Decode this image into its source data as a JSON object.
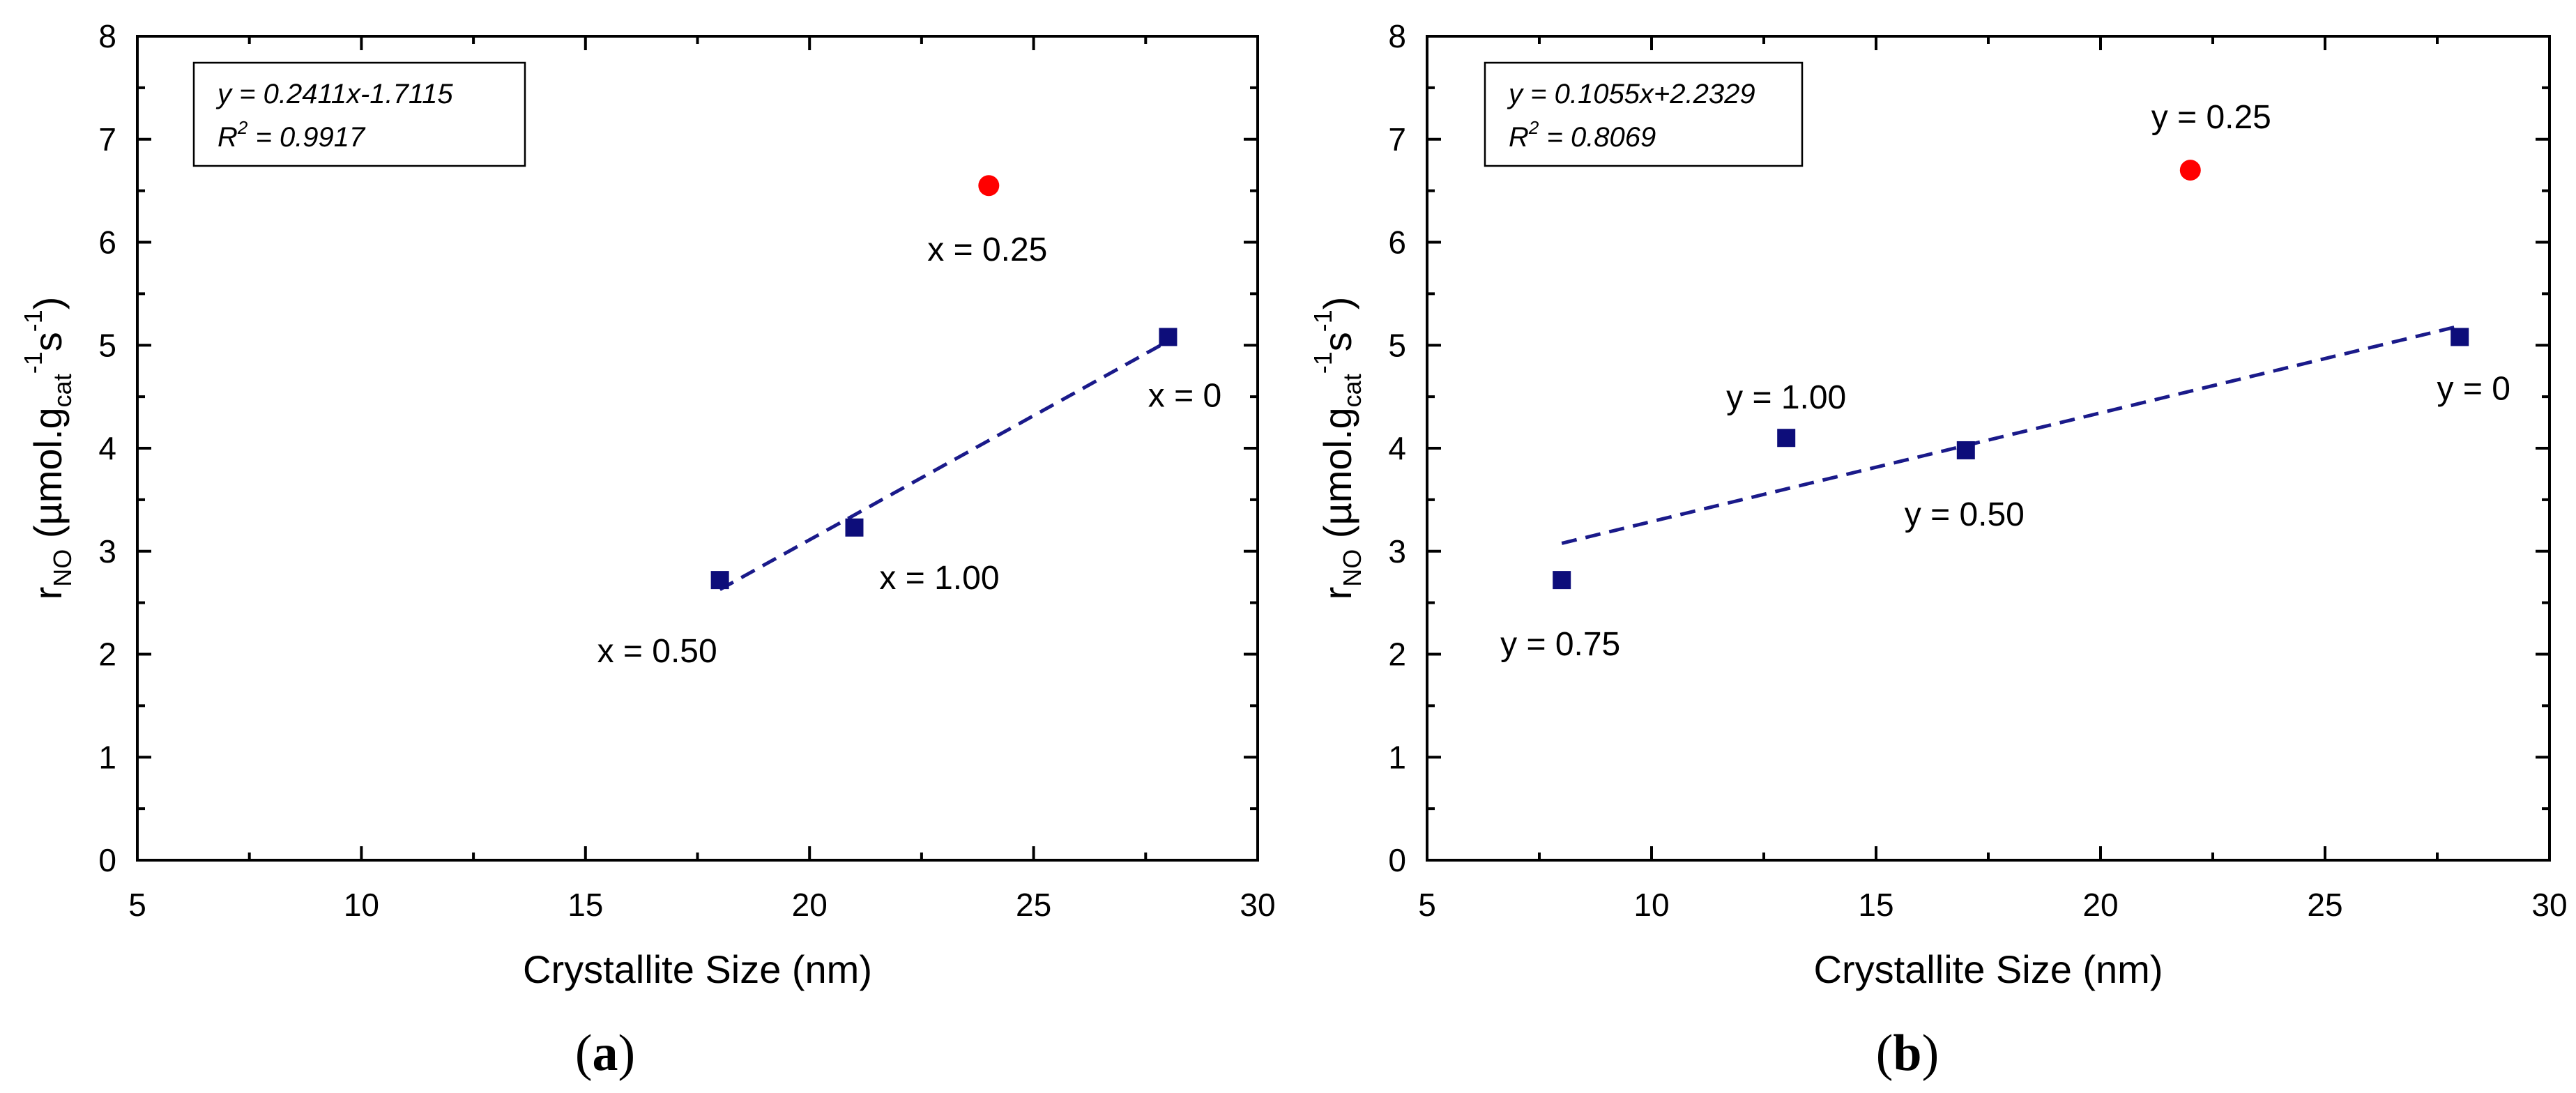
{
  "chart_data": [
    {
      "type": "scatter",
      "panel_label": "(a)",
      "panel_letter": "a",
      "xlabel": "Crystallite Size (nm)",
      "ylabel": {
        "base": "r",
        "base_sub": "NO",
        "unit_open": " (µmol.g",
        "unit_g_sub": "cat",
        "unit_g_sup": "-1",
        "unit_s": "s",
        "unit_s_sup": "-1",
        "unit_close": ")"
      },
      "xlim": [
        5,
        30
      ],
      "ylim": [
        0,
        8
      ],
      "xticks": [
        5,
        10,
        15,
        20,
        25,
        30
      ],
      "yticks": [
        0,
        1,
        2,
        3,
        4,
        5,
        6,
        7,
        8
      ],
      "grid": false,
      "equation": "y = 0.2411x-1.7115",
      "r2_label": "R",
      "r2_sup": "2",
      "r2_value": " = 0.9917",
      "fit": {
        "slope": 0.2411,
        "intercept": -1.7115,
        "x_range": [
          18,
          28
        ],
        "color": "#1a1a8a"
      },
      "series": [
        {
          "name": "squares",
          "marker": "square",
          "color": "#0d0d7a",
          "points": [
            {
              "x": 18,
              "y": 2.72,
              "label": "x = 0.50",
              "label_pos": "below-left"
            },
            {
              "x": 21,
              "y": 3.23,
              "label": "x = 1.00",
              "label_pos": "below-right"
            },
            {
              "x": 28,
              "y": 5.08,
              "label": "x = 0",
              "label_pos": "below-left-near"
            }
          ]
        },
        {
          "name": "outlier",
          "marker": "circle",
          "color": "#ff0000",
          "points": [
            {
              "x": 24,
              "y": 6.55,
              "label": "x = 0.25",
              "label_pos": "below"
            }
          ]
        }
      ]
    },
    {
      "type": "scatter",
      "panel_label": "(b)",
      "panel_letter": "b",
      "xlabel": "Crystallite Size (nm)",
      "ylabel": {
        "base": "r",
        "base_sub": "NO",
        "unit_open": " (µmol.g",
        "unit_g_sub": "cat",
        "unit_g_sup": "-1",
        "unit_s": "s",
        "unit_s_sup": "-1",
        "unit_close": ")"
      },
      "xlim": [
        5,
        30
      ],
      "ylim": [
        0,
        8
      ],
      "xticks": [
        5,
        10,
        15,
        20,
        25,
        30
      ],
      "yticks": [
        0,
        1,
        2,
        3,
        4,
        5,
        6,
        7,
        8
      ],
      "grid": false,
      "equation": "y = 0.1055x+2.2329",
      "r2_label": "R",
      "r2_sup": "2",
      "r2_value": " = 0.8069",
      "fit": {
        "slope": 0.1055,
        "intercept": 2.2329,
        "x_range": [
          8,
          28
        ],
        "color": "#1a1a8a"
      },
      "series": [
        {
          "name": "squares",
          "marker": "square",
          "color": "#0d0d7a",
          "points": [
            {
              "x": 8,
              "y": 2.72,
              "label": "y = 0.75",
              "label_pos": "below"
            },
            {
              "x": 13,
              "y": 4.1,
              "label": "y = 1.00",
              "label_pos": "above"
            },
            {
              "x": 17,
              "y": 3.98,
              "label": "y = 0.50",
              "label_pos": "below"
            },
            {
              "x": 28,
              "y": 5.08,
              "label": "y = 0",
              "label_pos": "below-near"
            }
          ]
        },
        {
          "name": "outlier",
          "marker": "circle",
          "color": "#ff0000",
          "points": [
            {
              "x": 22,
              "y": 6.7,
              "label": "y = 0.25",
              "label_pos": "above-right"
            }
          ]
        }
      ]
    }
  ]
}
